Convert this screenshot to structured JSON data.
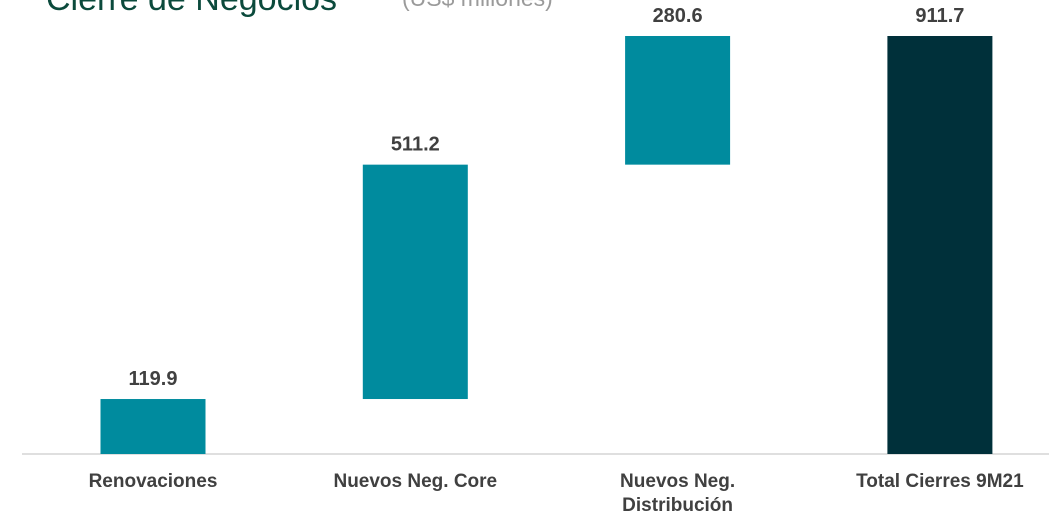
{
  "chart_data": {
    "type": "waterfall",
    "title": "Cierre de Negocios",
    "subtitle": "(US$ millones)",
    "categories": [
      "Renovaciones",
      "Nuevos Neg. Core",
      "Nuevos Neg. Distribución",
      "Total Cierres 9M21"
    ],
    "values": [
      119.9,
      511.2,
      280.6,
      911.7
    ],
    "colors": [
      "#008b9e",
      "#008b9e",
      "#008b9e",
      "#00303a"
    ]
  }
}
